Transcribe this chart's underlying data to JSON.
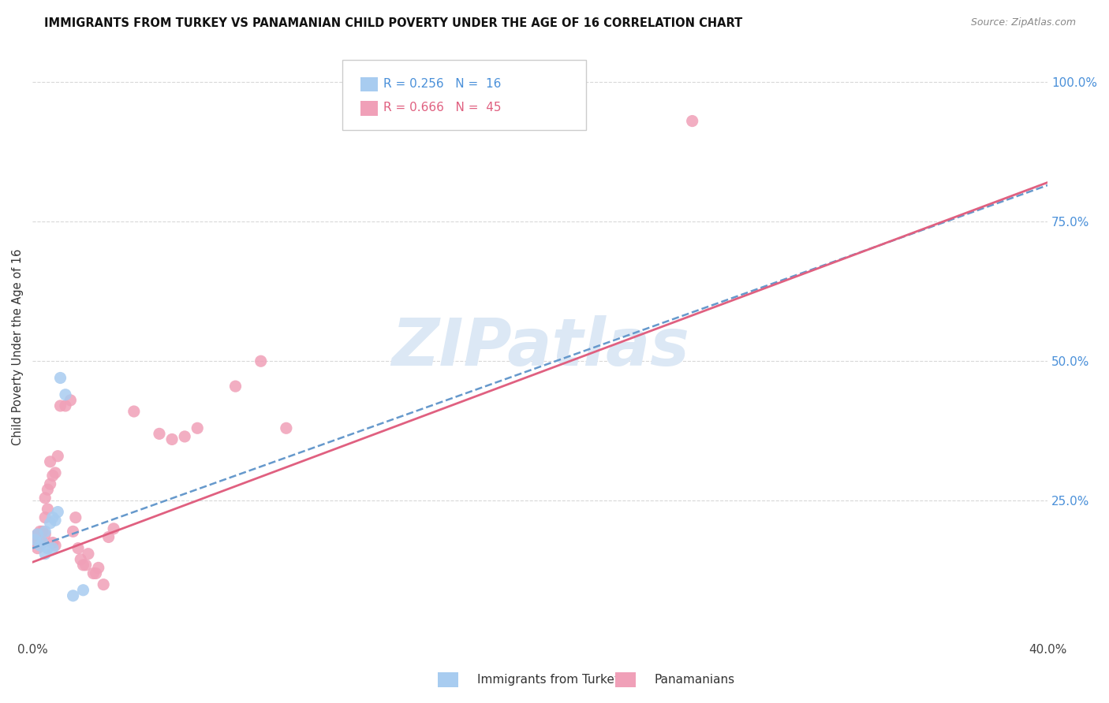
{
  "title": "IMMIGRANTS FROM TURKEY VS PANAMANIAN CHILD POVERTY UNDER THE AGE OF 16 CORRELATION CHART",
  "source": "Source: ZipAtlas.com",
  "ylabel_label": "Child Poverty Under the Age of 16",
  "turkey_color": "#a8ccf0",
  "panama_color": "#f0a0b8",
  "turkey_line_color": "#6699cc",
  "panama_line_color": "#e06080",
  "turkey_R": "0.256",
  "turkey_N": "16",
  "panama_R": "0.666",
  "panama_N": "45",
  "watermark": "ZIPatlas",
  "watermark_color": "#dce8f5",
  "background": "#ffffff",
  "grid_color": "#d8d8d8",
  "right_tick_color": "#4a90d9",
  "turkey_points_x": [
    0.001,
    0.002,
    0.003,
    0.004,
    0.005,
    0.005,
    0.006,
    0.007,
    0.008,
    0.008,
    0.009,
    0.01,
    0.011,
    0.013,
    0.016,
    0.02
  ],
  "turkey_points_y": [
    0.18,
    0.19,
    0.17,
    0.175,
    0.195,
    0.155,
    0.165,
    0.21,
    0.22,
    0.165,
    0.215,
    0.23,
    0.47,
    0.44,
    0.08,
    0.09
  ],
  "panama_points_x": [
    0.001,
    0.001,
    0.002,
    0.002,
    0.003,
    0.003,
    0.004,
    0.004,
    0.005,
    0.005,
    0.005,
    0.006,
    0.006,
    0.007,
    0.007,
    0.008,
    0.008,
    0.009,
    0.009,
    0.01,
    0.011,
    0.013,
    0.015,
    0.016,
    0.017,
    0.018,
    0.019,
    0.02,
    0.021,
    0.022,
    0.024,
    0.025,
    0.026,
    0.028,
    0.03,
    0.032,
    0.04,
    0.05,
    0.055,
    0.06,
    0.065,
    0.08,
    0.09,
    0.1,
    0.26
  ],
  "panama_points_y": [
    0.175,
    0.185,
    0.165,
    0.19,
    0.175,
    0.195,
    0.195,
    0.175,
    0.19,
    0.22,
    0.255,
    0.235,
    0.27,
    0.28,
    0.32,
    0.295,
    0.175,
    0.3,
    0.17,
    0.33,
    0.42,
    0.42,
    0.43,
    0.195,
    0.22,
    0.165,
    0.145,
    0.135,
    0.135,
    0.155,
    0.12,
    0.12,
    0.13,
    0.1,
    0.185,
    0.2,
    0.41,
    0.37,
    0.36,
    0.365,
    0.38,
    0.455,
    0.5,
    0.38,
    0.93
  ],
  "turkey_line_x0": 0.0,
  "turkey_line_x1": 0.4,
  "turkey_line_y0": 0.165,
  "turkey_line_y1": 0.815,
  "panama_line_x0": 0.0,
  "panama_line_x1": 0.4,
  "panama_line_y0": 0.14,
  "panama_line_y1": 0.82,
  "xlim": [
    0.0,
    0.4
  ],
  "ylim": [
    0.0,
    1.05
  ],
  "yticks": [
    0.25,
    0.5,
    0.75,
    1.0
  ],
  "ytick_labels": [
    "25.0%",
    "50.0%",
    "75.0%",
    "100.0%"
  ],
  "xticks": [
    0.0,
    0.4
  ],
  "xtick_labels": [
    "0.0%",
    "40.0%"
  ],
  "legend_title_color1": "#4a90d9",
  "legend_title_color2": "#e06080"
}
